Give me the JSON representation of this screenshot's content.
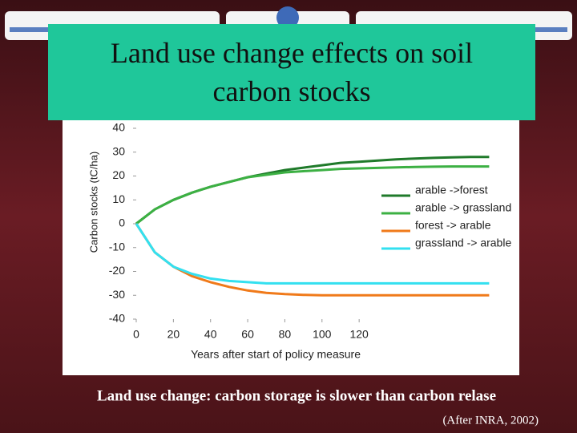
{
  "chart_data": {
    "type": "line",
    "title": "Land use change effects on soil carbon stocks",
    "caption": "Land use change: carbon storage is slower than carbon relase",
    "source": "(After INRA, 2002)",
    "xlabel": "Years after start of policy measure",
    "ylabel": "Carbon stocks (tC/ha)",
    "x": [
      0,
      10,
      20,
      30,
      40,
      50,
      60,
      70,
      80,
      90,
      100,
      110,
      120,
      130,
      140,
      150,
      160,
      170,
      180,
      190
    ],
    "series": [
      {
        "name": "arable ->forest",
        "color": "#1f7a2a",
        "values": [
          0,
          6,
          10,
          13,
          15.5,
          17.5,
          19.5,
          21,
          22.5,
          23.5,
          24.5,
          25.5,
          26,
          26.5,
          27,
          27.3,
          27.6,
          27.8,
          28,
          28
        ]
      },
      {
        "name": "arable -> grassland",
        "color": "#3cb043",
        "values": [
          0,
          6,
          10,
          13,
          15.5,
          17.5,
          19.5,
          20.5,
          21.5,
          22,
          22.5,
          23,
          23.2,
          23.4,
          23.6,
          23.8,
          23.9,
          24,
          24,
          24
        ]
      },
      {
        "name": "forest -> arable",
        "color": "#f07a1a",
        "values": [
          0,
          -12,
          -18,
          -22,
          -24.5,
          -26.5,
          -28,
          -29,
          -29.5,
          -29.8,
          -30,
          -30,
          -30,
          -30,
          -30,
          -30,
          -30,
          -30,
          -30,
          -30
        ]
      },
      {
        "name": "grassland -> arable",
        "color": "#33e0f0",
        "values": [
          0,
          -12,
          -18,
          -21,
          -23,
          -24,
          -24.5,
          -25,
          -25,
          -25,
          -25,
          -25,
          -25,
          -25,
          -25,
          -25,
          -25,
          -25,
          -25,
          -25
        ]
      }
    ],
    "xlim": [
      0,
      195
    ],
    "xticks": [
      0,
      20,
      40,
      60,
      80,
      100,
      120
    ],
    "ylim": [
      -40,
      40
    ],
    "yticks": [
      40,
      30,
      20,
      10,
      0,
      -10,
      -20,
      -30,
      -40
    ],
    "grid": false,
    "legend": "right"
  }
}
